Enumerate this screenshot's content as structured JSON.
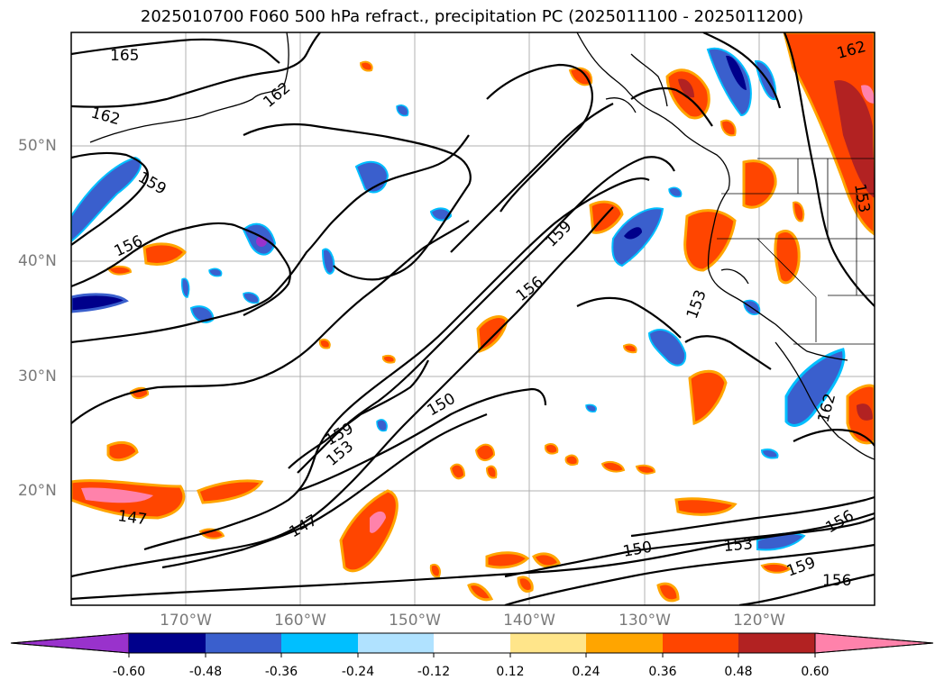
{
  "title": "2025010700 F060 500 hPa refract., precipitation PC (2025011100 - 2025011200)",
  "lat_labels": [
    "50°N",
    "40°N",
    "30°N",
    "20°N"
  ],
  "lon_labels": [
    "170°W",
    "160°W",
    "150°W",
    "140°W",
    "130°W",
    "120°W"
  ],
  "contour_labels": [
    "165",
    "162",
    "162",
    "159",
    "156",
    "159",
    "156",
    "150",
    "153",
    "159",
    "153",
    "147",
    "147",
    "150",
    "153",
    "156",
    "159",
    "156",
    "162",
    "153",
    "162"
  ],
  "colorbar": {
    "ticks": [
      "-0.60",
      "-0.48",
      "-0.36",
      "-0.24",
      "-0.12",
      "0.12",
      "0.24",
      "0.36",
      "0.48",
      "0.60"
    ],
    "colors": [
      "#9932CC",
      "#00008B",
      "#3A5FCD",
      "#00BFFF",
      "#B0E2FF",
      "#FFFFFF",
      "#FFE58A",
      "#FFA500",
      "#FF4500",
      "#B22222",
      "#FF82AB"
    ]
  }
}
